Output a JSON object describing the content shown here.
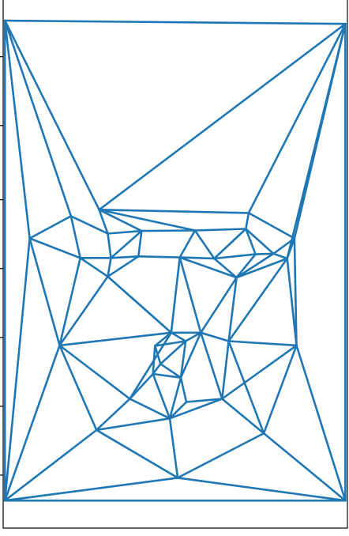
{
  "chart_data": {
    "type": "line",
    "title": "",
    "xlabel": "",
    "ylabel": "",
    "xlim": [
      0,
      100
    ],
    "ylim": [
      0,
      100
    ],
    "grid": false,
    "colors": {
      "line": "#1f77b4",
      "axes": "#000000"
    },
    "x_ticks": [
      15,
      35,
      55,
      75,
      95
    ],
    "y_ticks": [
      10,
      23,
      36,
      49,
      62,
      76,
      89
    ],
    "vertices": [
      [
        0.5,
        95.8
      ],
      [
        99.4,
        95.2
      ],
      [
        0.5,
        5.2
      ],
      [
        99.4,
        5.2
      ],
      [
        27.9,
        60.1
      ],
      [
        19.7,
        58.9
      ],
      [
        71.3,
        59.5
      ],
      [
        7.7,
        54.7
      ],
      [
        84.6,
        54.7
      ],
      [
        30.4,
        55.6
      ],
      [
        40.2,
        56.1
      ],
      [
        55.7,
        56.2
      ],
      [
        70.5,
        56.5
      ],
      [
        82.5,
        50.9
      ],
      [
        22.4,
        51.0
      ],
      [
        31.3,
        51.0
      ],
      [
        39.3,
        51.3
      ],
      [
        61.3,
        50.9
      ],
      [
        73.3,
        51.7
      ],
      [
        78.5,
        51.8
      ],
      [
        30.4,
        47.5
      ],
      [
        51.3,
        51.1
      ],
      [
        67.8,
        47.3
      ],
      [
        48.8,
        36.9
      ],
      [
        57.4,
        36.9
      ],
      [
        65.5,
        35.3
      ],
      [
        16.4,
        34.5
      ],
      [
        85.2,
        34.5
      ],
      [
        44.1,
        34.4
      ],
      [
        53.0,
        35.3
      ],
      [
        45.7,
        31.0
      ],
      [
        43.5,
        29.1
      ],
      [
        51.6,
        28.4
      ],
      [
        36.8,
        24.4
      ],
      [
        53.2,
        23.8
      ],
      [
        63.6,
        24.4
      ],
      [
        48.4,
        20.7
      ],
      [
        27.1,
        18.5
      ],
      [
        75.7,
        17.9
      ],
      [
        50.7,
        9.5
      ]
    ],
    "edges": [
      [
        0,
        1
      ],
      [
        0,
        2
      ],
      [
        1,
        3
      ],
      [
        2,
        3
      ],
      [
        1,
        4
      ],
      [
        0,
        4
      ],
      [
        0,
        5
      ],
      [
        0,
        7
      ],
      [
        1,
        6
      ],
      [
        1,
        8
      ],
      [
        1,
        13
      ],
      [
        4,
        6
      ],
      [
        4,
        9
      ],
      [
        5,
        9
      ],
      [
        4,
        11
      ],
      [
        4,
        10
      ],
      [
        6,
        12
      ],
      [
        6,
        8
      ],
      [
        5,
        7
      ],
      [
        5,
        14
      ],
      [
        7,
        14
      ],
      [
        9,
        15
      ],
      [
        9,
        10
      ],
      [
        10,
        15
      ],
      [
        10,
        16
      ],
      [
        10,
        11
      ],
      [
        11,
        12
      ],
      [
        11,
        21
      ],
      [
        11,
        17
      ],
      [
        12,
        17
      ],
      [
        12,
        18
      ],
      [
        12,
        19
      ],
      [
        8,
        19
      ],
      [
        8,
        13
      ],
      [
        14,
        15
      ],
      [
        15,
        16
      ],
      [
        16,
        21
      ],
      [
        21,
        17
      ],
      [
        17,
        18
      ],
      [
        18,
        19
      ],
      [
        19,
        13
      ],
      [
        14,
        20
      ],
      [
        15,
        20
      ],
      [
        16,
        20
      ],
      [
        21,
        22
      ],
      [
        17,
        22
      ],
      [
        18,
        22
      ],
      [
        19,
        22
      ],
      [
        13,
        22
      ],
      [
        20,
        23
      ],
      [
        21,
        23
      ],
      [
        21,
        24
      ],
      [
        22,
        24
      ],
      [
        22,
        25
      ],
      [
        13,
        25
      ],
      [
        13,
        27
      ],
      [
        7,
        26
      ],
      [
        14,
        26
      ],
      [
        20,
        26
      ],
      [
        20,
        23
      ],
      [
        23,
        24
      ],
      [
        24,
        25
      ],
      [
        25,
        27
      ],
      [
        8,
        27
      ],
      [
        7,
        2
      ],
      [
        26,
        2
      ],
      [
        26,
        37
      ],
      [
        26,
        23
      ],
      [
        23,
        28
      ],
      [
        23,
        29
      ],
      [
        28,
        29
      ],
      [
        24,
        29
      ],
      [
        28,
        30
      ],
      [
        28,
        31
      ],
      [
        29,
        30
      ],
      [
        29,
        32
      ],
      [
        30,
        31
      ],
      [
        30,
        32
      ],
      [
        31,
        36
      ],
      [
        32,
        36
      ],
      [
        31,
        32
      ],
      [
        24,
        32
      ],
      [
        24,
        35
      ],
      [
        25,
        35
      ],
      [
        27,
        35
      ],
      [
        27,
        38
      ],
      [
        27,
        3
      ],
      [
        26,
        33
      ],
      [
        23,
        33
      ],
      [
        33,
        31
      ],
      [
        33,
        36
      ],
      [
        33,
        37
      ],
      [
        36,
        34
      ],
      [
        32,
        34
      ],
      [
        34,
        35
      ],
      [
        35,
        38
      ],
      [
        38,
        3
      ],
      [
        37,
        2
      ],
      [
        37,
        39
      ],
      [
        36,
        39
      ],
      [
        38,
        39
      ],
      [
        2,
        39
      ],
      [
        39,
        3
      ],
      [
        37,
        36
      ],
      [
        35,
        36
      ],
      [
        38,
        25
      ]
    ]
  }
}
